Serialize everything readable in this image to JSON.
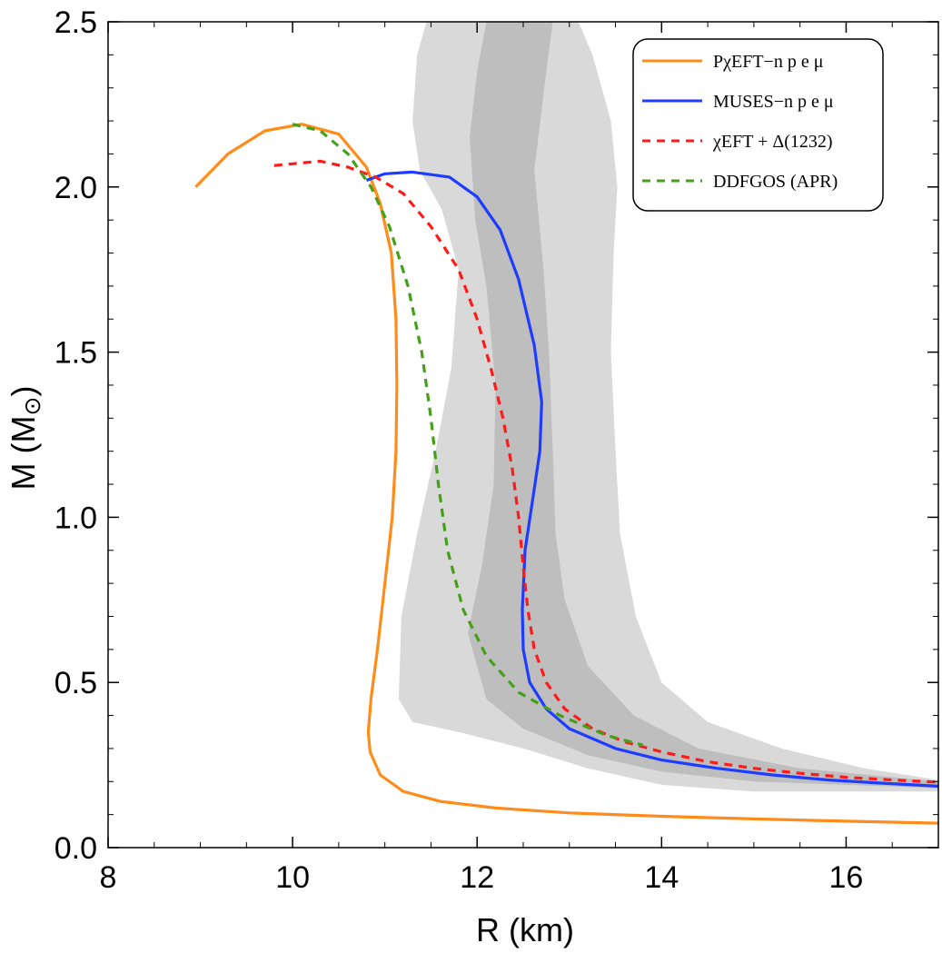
{
  "chart_data": {
    "type": "line",
    "title": "",
    "xlabel": "R (km)",
    "ylabel": "M (M⊙)",
    "xlim": [
      8,
      17
    ],
    "ylim": [
      0,
      2.5
    ],
    "x_ticks": [
      "8",
      "10",
      "12",
      "14",
      "16"
    ],
    "y_ticks": [
      "0.0",
      "0.5",
      "1.0",
      "1.5",
      "2.0",
      "2.5"
    ],
    "legend_position": "top-right",
    "series": [
      {
        "name": "PχEFT−n p e μ",
        "color": "#ff8c1a",
        "style": "solid",
        "points": [
          [
            8.95,
            2.0
          ],
          [
            9.3,
            2.1
          ],
          [
            9.7,
            2.17
          ],
          [
            10.1,
            2.19
          ],
          [
            10.5,
            2.16
          ],
          [
            10.8,
            2.06
          ],
          [
            10.95,
            1.95
          ],
          [
            11.07,
            1.8
          ],
          [
            11.12,
            1.6
          ],
          [
            11.13,
            1.4
          ],
          [
            11.12,
            1.2
          ],
          [
            11.08,
            1.0
          ],
          [
            11.0,
            0.8
          ],
          [
            10.92,
            0.6
          ],
          [
            10.85,
            0.45
          ],
          [
            10.82,
            0.35
          ],
          [
            10.84,
            0.29
          ],
          [
            10.95,
            0.22
          ],
          [
            11.2,
            0.17
          ],
          [
            11.6,
            0.14
          ],
          [
            12.2,
            0.12
          ],
          [
            13.0,
            0.105
          ],
          [
            14.0,
            0.095
          ],
          [
            15.0,
            0.087
          ],
          [
            16.0,
            0.08
          ],
          [
            17.0,
            0.074
          ]
        ]
      },
      {
        "name": "MUSES−n p e μ",
        "color": "#1e3cff",
        "style": "solid",
        "points": [
          [
            10.8,
            2.02
          ],
          [
            11.0,
            2.04
          ],
          [
            11.3,
            2.045
          ],
          [
            11.7,
            2.03
          ],
          [
            12.0,
            1.97
          ],
          [
            12.25,
            1.87
          ],
          [
            12.45,
            1.72
          ],
          [
            12.62,
            1.52
          ],
          [
            12.7,
            1.35
          ],
          [
            12.68,
            1.2
          ],
          [
            12.6,
            1.05
          ],
          [
            12.52,
            0.9
          ],
          [
            12.49,
            0.72
          ],
          [
            12.5,
            0.6
          ],
          [
            12.57,
            0.5
          ],
          [
            12.75,
            0.42
          ],
          [
            13.0,
            0.36
          ],
          [
            13.5,
            0.3
          ],
          [
            14.0,
            0.265
          ],
          [
            14.6,
            0.24
          ],
          [
            15.2,
            0.22
          ],
          [
            15.8,
            0.205
          ],
          [
            16.4,
            0.195
          ],
          [
            17.0,
            0.186
          ]
        ]
      },
      {
        "name": "χEFT + Δ(1232)",
        "color": "#ff1a1a",
        "style": "dashed",
        "points": [
          [
            9.8,
            2.065
          ],
          [
            10.0,
            2.07
          ],
          [
            10.3,
            2.078
          ],
          [
            10.6,
            2.06
          ],
          [
            10.9,
            2.03
          ],
          [
            11.2,
            1.98
          ],
          [
            11.5,
            1.88
          ],
          [
            11.8,
            1.75
          ],
          [
            12.0,
            1.6
          ],
          [
            12.15,
            1.45
          ],
          [
            12.28,
            1.3
          ],
          [
            12.38,
            1.15
          ],
          [
            12.45,
            1.0
          ],
          [
            12.5,
            0.85
          ],
          [
            12.55,
            0.72
          ],
          [
            12.62,
            0.6
          ],
          [
            12.75,
            0.5
          ],
          [
            12.95,
            0.42
          ],
          [
            13.25,
            0.36
          ],
          [
            13.6,
            0.32
          ],
          [
            14.0,
            0.29
          ],
          [
            14.5,
            0.26
          ],
          [
            15.0,
            0.24
          ],
          [
            15.5,
            0.225
          ],
          [
            16.0,
            0.213
          ],
          [
            16.5,
            0.205
          ],
          [
            17.0,
            0.198
          ]
        ]
      },
      {
        "name": "DDFGOS (APR)",
        "color": "#44a018",
        "style": "dashed",
        "points": [
          [
            10.0,
            2.19
          ],
          [
            10.3,
            2.17
          ],
          [
            10.6,
            2.1
          ],
          [
            10.85,
            2.0
          ],
          [
            11.05,
            1.88
          ],
          [
            11.25,
            1.7
          ],
          [
            11.4,
            1.5
          ],
          [
            11.5,
            1.3
          ],
          [
            11.58,
            1.1
          ],
          [
            11.68,
            0.9
          ],
          [
            11.85,
            0.72
          ],
          [
            12.1,
            0.58
          ],
          [
            12.45,
            0.47
          ],
          [
            12.9,
            0.4
          ],
          [
            13.4,
            0.34
          ],
          [
            13.8,
            0.31
          ]
        ]
      }
    ],
    "bands": [
      {
        "name": "outer band",
        "color": "#d9d9d9",
        "left": [
          [
            11.15,
            0.45
          ],
          [
            11.18,
            0.7
          ],
          [
            11.35,
            0.95
          ],
          [
            11.55,
            1.2
          ],
          [
            11.72,
            1.45
          ],
          [
            11.8,
            1.75
          ],
          [
            11.62,
            1.93
          ],
          [
            11.38,
            2.05
          ],
          [
            11.3,
            2.2
          ],
          [
            11.35,
            2.4
          ],
          [
            11.45,
            2.5
          ]
        ],
        "right": [
          [
            13.1,
            2.5
          ],
          [
            13.25,
            2.4
          ],
          [
            13.45,
            2.2
          ],
          [
            13.52,
            2.0
          ],
          [
            13.48,
            1.8
          ],
          [
            13.45,
            1.5
          ],
          [
            13.5,
            1.2
          ],
          [
            13.55,
            0.95
          ],
          [
            13.72,
            0.7
          ],
          [
            14.0,
            0.5
          ],
          [
            14.5,
            0.38
          ],
          [
            15.3,
            0.3
          ],
          [
            16.2,
            0.24
          ],
          [
            17.0,
            0.205
          ]
        ],
        "bottom": [
          [
            17.0,
            0.17
          ],
          [
            16.0,
            0.17
          ],
          [
            15.0,
            0.17
          ],
          [
            14.0,
            0.19
          ],
          [
            13.2,
            0.24
          ],
          [
            12.5,
            0.3
          ],
          [
            11.8,
            0.35
          ],
          [
            11.3,
            0.38
          ],
          [
            11.15,
            0.45
          ]
        ]
      },
      {
        "name": "inner band",
        "color": "#bebebe",
        "left": [
          [
            11.9,
            0.65
          ],
          [
            12.05,
            0.85
          ],
          [
            12.18,
            1.1
          ],
          [
            12.2,
            1.4
          ],
          [
            12.1,
            1.7
          ],
          [
            11.98,
            1.9
          ],
          [
            11.92,
            2.15
          ],
          [
            12.0,
            2.35
          ],
          [
            12.1,
            2.5
          ]
        ],
        "right": [
          [
            12.82,
            2.5
          ],
          [
            12.75,
            2.35
          ],
          [
            12.62,
            2.05
          ],
          [
            12.72,
            1.75
          ],
          [
            12.78,
            1.5
          ],
          [
            12.82,
            1.2
          ],
          [
            12.85,
            0.95
          ],
          [
            12.95,
            0.75
          ],
          [
            13.2,
            0.55
          ],
          [
            13.7,
            0.4
          ],
          [
            14.4,
            0.3
          ],
          [
            15.5,
            0.24
          ],
          [
            17.0,
            0.2
          ]
        ],
        "bottom": [
          [
            17.0,
            0.18
          ],
          [
            16.0,
            0.19
          ],
          [
            15.0,
            0.2
          ],
          [
            14.0,
            0.23
          ],
          [
            13.2,
            0.28
          ],
          [
            12.5,
            0.36
          ],
          [
            12.1,
            0.45
          ],
          [
            11.9,
            0.65
          ]
        ]
      }
    ]
  }
}
